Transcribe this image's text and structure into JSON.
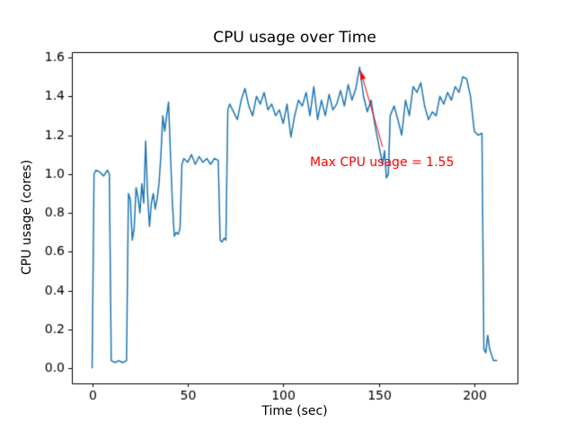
{
  "chart_data": {
    "type": "line",
    "title": "CPU usage over Time",
    "xlabel": "Time (sec)",
    "ylabel": "CPU usage (cores)",
    "xlim": [
      -10.6,
      222.6
    ],
    "ylim": [
      -0.0775,
      1.6275
    ],
    "xticks": [
      0,
      50,
      100,
      150,
      200
    ],
    "yticks": [
      0.0,
      0.2,
      0.4,
      0.6,
      0.8,
      1.0,
      1.2,
      1.4,
      1.6
    ],
    "grid": false,
    "legend": null,
    "line_color": "#1f77b4",
    "line_width": 1.5,
    "max_value": 1.55,
    "annotation": {
      "text": "Max CPU usage = 1.55",
      "color": "#ff0000",
      "text_x": 114,
      "text_y": 1.06,
      "arrow_from": [
        152,
        1.14
      ],
      "arrow_to": [
        140.5,
        1.53
      ]
    },
    "points": [
      [
        0,
        0.0
      ],
      [
        1,
        1.0
      ],
      [
        2,
        1.02
      ],
      [
        4,
        1.01
      ],
      [
        6,
        0.99
      ],
      [
        8,
        1.02
      ],
      [
        9,
        1.0
      ],
      [
        10,
        0.04
      ],
      [
        12,
        0.03
      ],
      [
        14,
        0.04
      ],
      [
        16,
        0.03
      ],
      [
        18,
        0.04
      ],
      [
        19,
        0.9
      ],
      [
        20,
        0.87
      ],
      [
        21,
        0.66
      ],
      [
        22,
        0.72
      ],
      [
        23,
        0.93
      ],
      [
        24,
        0.88
      ],
      [
        25,
        0.8
      ],
      [
        26,
        0.95
      ],
      [
        27,
        0.85
      ],
      [
        28,
        1.17
      ],
      [
        29,
        0.9
      ],
      [
        30,
        0.73
      ],
      [
        31,
        0.85
      ],
      [
        32,
        0.9
      ],
      [
        33,
        0.82
      ],
      [
        34,
        0.87
      ],
      [
        35,
        0.95
      ],
      [
        36,
        1.1
      ],
      [
        37,
        1.3
      ],
      [
        38,
        1.22
      ],
      [
        39,
        1.3
      ],
      [
        40,
        1.37
      ],
      [
        41,
        1.1
      ],
      [
        42,
        0.85
      ],
      [
        43,
        0.68
      ],
      [
        44,
        0.7
      ],
      [
        45,
        0.69
      ],
      [
        46,
        0.72
      ],
      [
        47,
        1.05
      ],
      [
        48,
        1.08
      ],
      [
        50,
        1.06
      ],
      [
        52,
        1.1
      ],
      [
        54,
        1.05
      ],
      [
        56,
        1.09
      ],
      [
        58,
        1.06
      ],
      [
        60,
        1.08
      ],
      [
        62,
        1.05
      ],
      [
        64,
        1.08
      ],
      [
        66,
        1.07
      ],
      [
        67,
        0.66
      ],
      [
        68,
        0.65
      ],
      [
        69,
        0.67
      ],
      [
        70,
        0.66
      ],
      [
        71,
        1.33
      ],
      [
        72,
        1.36
      ],
      [
        74,
        1.32
      ],
      [
        76,
        1.28
      ],
      [
        78,
        1.38
      ],
      [
        80,
        1.44
      ],
      [
        82,
        1.35
      ],
      [
        84,
        1.3
      ],
      [
        86,
        1.4
      ],
      [
        88,
        1.36
      ],
      [
        90,
        1.42
      ],
      [
        92,
        1.33
      ],
      [
        94,
        1.36
      ],
      [
        96,
        1.3
      ],
      [
        98,
        1.33
      ],
      [
        100,
        1.26
      ],
      [
        102,
        1.36
      ],
      [
        104,
        1.19
      ],
      [
        106,
        1.3
      ],
      [
        108,
        1.38
      ],
      [
        110,
        1.35
      ],
      [
        112,
        1.42
      ],
      [
        114,
        1.3
      ],
      [
        116,
        1.45
      ],
      [
        118,
        1.28
      ],
      [
        120,
        1.38
      ],
      [
        122,
        1.3
      ],
      [
        124,
        1.41
      ],
      [
        126,
        1.33
      ],
      [
        128,
        1.36
      ],
      [
        130,
        1.43
      ],
      [
        132,
        1.35
      ],
      [
        134,
        1.46
      ],
      [
        136,
        1.38
      ],
      [
        138,
        1.44
      ],
      [
        140,
        1.55
      ],
      [
        142,
        1.4
      ],
      [
        144,
        1.32
      ],
      [
        146,
        1.38
      ],
      [
        148,
        1.25
      ],
      [
        150,
        1.15
      ],
      [
        152,
        1.05
      ],
      [
        153,
        1.12
      ],
      [
        154,
        0.98
      ],
      [
        155,
        1.0
      ],
      [
        156,
        1.3
      ],
      [
        158,
        1.35
      ],
      [
        160,
        1.28
      ],
      [
        162,
        1.2
      ],
      [
        164,
        1.38
      ],
      [
        166,
        1.3
      ],
      [
        168,
        1.45
      ],
      [
        170,
        1.42
      ],
      [
        172,
        1.47
      ],
      [
        174,
        1.35
      ],
      [
        176,
        1.28
      ],
      [
        178,
        1.32
      ],
      [
        180,
        1.3
      ],
      [
        182,
        1.4
      ],
      [
        184,
        1.36
      ],
      [
        186,
        1.42
      ],
      [
        188,
        1.38
      ],
      [
        190,
        1.45
      ],
      [
        192,
        1.42
      ],
      [
        194,
        1.5
      ],
      [
        196,
        1.49
      ],
      [
        198,
        1.4
      ],
      [
        200,
        1.22
      ],
      [
        202,
        1.2
      ],
      [
        204,
        1.21
      ],
      [
        205,
        0.1
      ],
      [
        206,
        0.08
      ],
      [
        207,
        0.17
      ],
      [
        208,
        0.1
      ],
      [
        210,
        0.04
      ],
      [
        212,
        0.04
      ]
    ]
  }
}
